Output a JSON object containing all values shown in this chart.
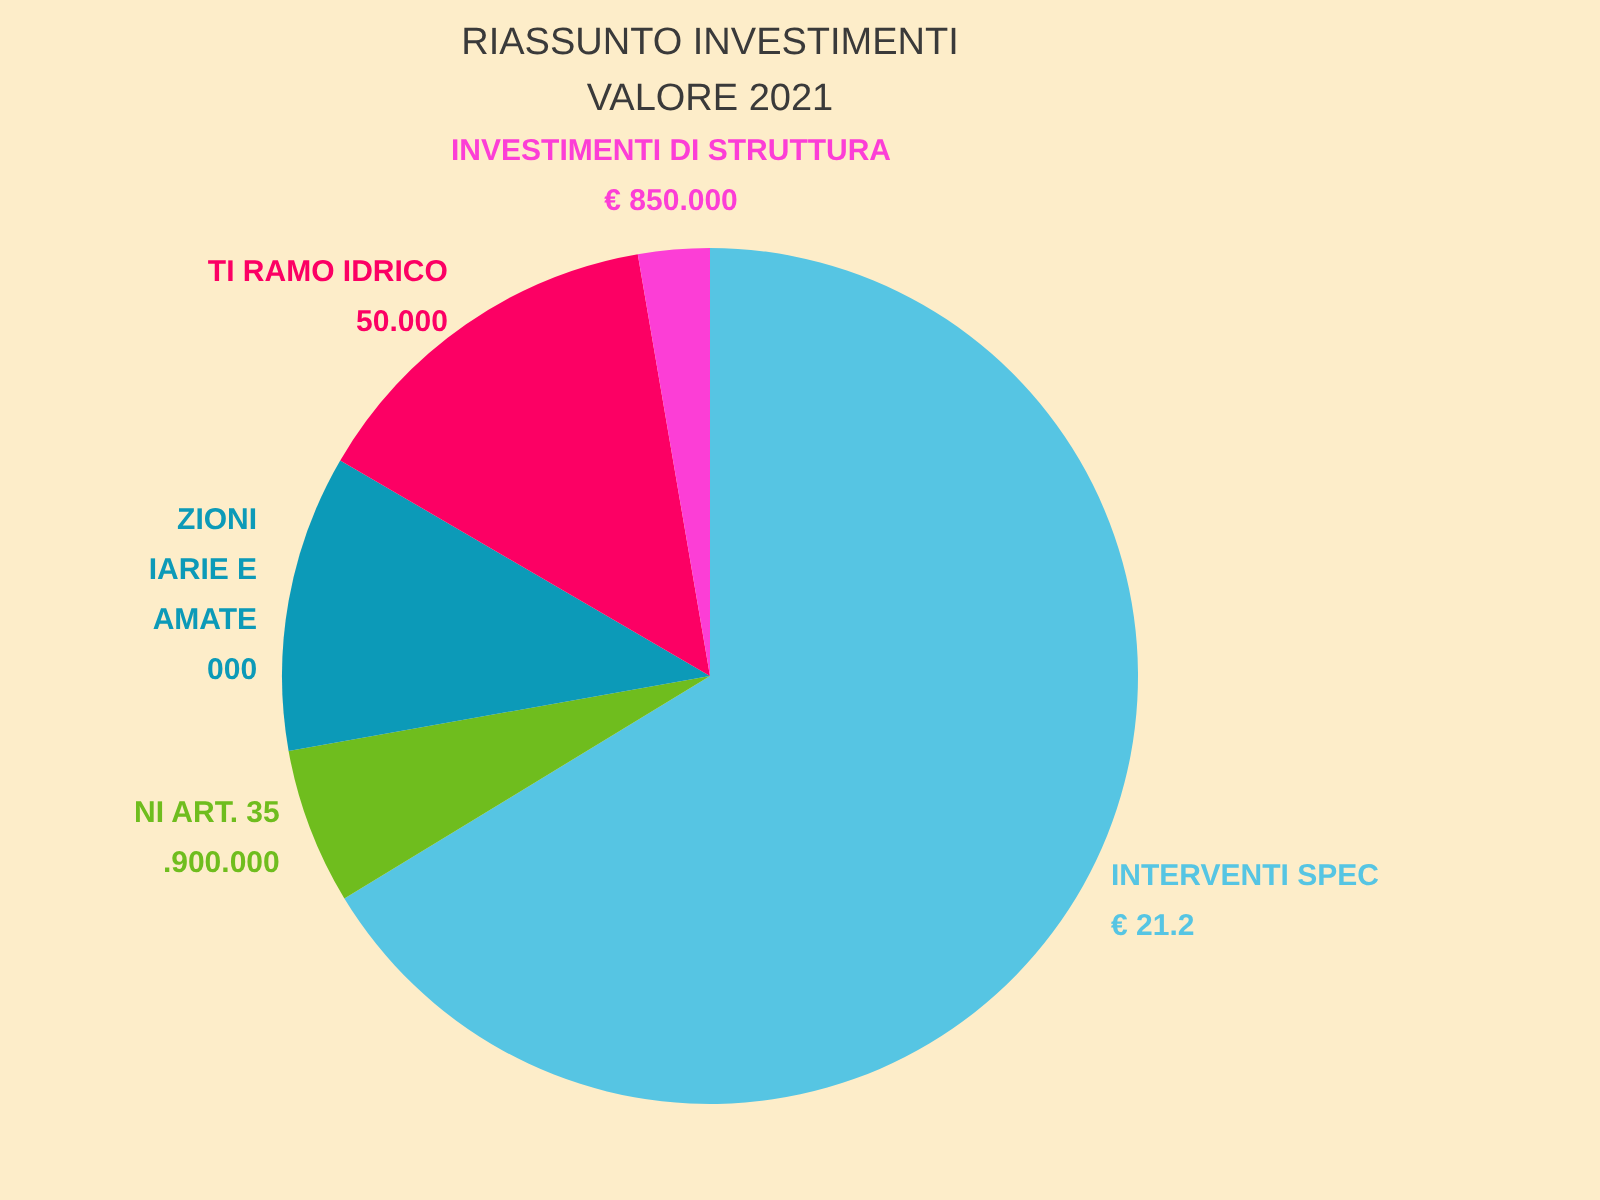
{
  "chart_data": {
    "type": "pie",
    "title": "RIASSUNTO INVESTIMENTI",
    "subtitle": "VALORE 2021",
    "categories": [
      "INTERVENTI SPEC\n€ 21.2",
      "NI ART. 35\n.900.000",
      "ZIONI\nIARIE E\nAMATE\n000",
      "TI RAMO IDRICO\n50.000",
      "INVESTIMENTI DI STRUTTURA\n€ 850.000"
    ],
    "values": [
      66.3,
      5.9,
      11.2,
      13.9,
      2.7
    ],
    "colors": [
      "#56c5e3",
      "#6fbd1e",
      "#0c9ab8",
      "#fc0064",
      "#fc3ed6"
    ]
  }
}
